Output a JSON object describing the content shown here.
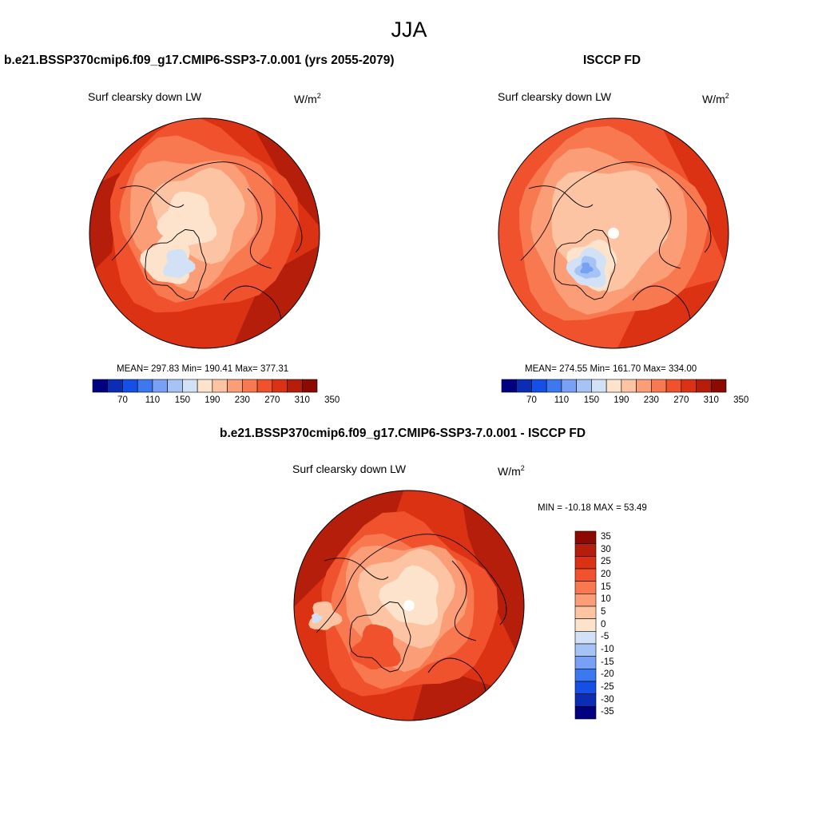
{
  "season": "JJA",
  "panels": [
    {
      "title": "b.e21.BSSP370cmip6.f09_g17.CMIP6-SSP3-7.0.001 (yrs 2055-2079)",
      "variable": "Surf clearsky down LW",
      "units_base": "W/m",
      "units_exp": "2",
      "stats": "MEAN= 297.83  Min= 190.41  Max= 377.31"
    },
    {
      "title": "ISCCP FD",
      "variable": "Surf clearsky down LW",
      "units_base": "W/m",
      "units_exp": "2",
      "stats": "MEAN= 274.55  Min= 161.70  Max= 334.00"
    },
    {
      "title": "b.e21.BSSP370cmip6.f09_g17.CMIP6-SSP3-7.0.001 - ISCCP FD",
      "variable": "Surf clearsky down LW",
      "units_base": "W/m",
      "units_exp": "2",
      "stats": "MIN = -10.18 MAX =  53.49"
    }
  ],
  "colorbar_abs": {
    "tick_labels": [
      "70",
      "110",
      "150",
      "190",
      "230",
      "270",
      "310",
      "350"
    ],
    "colors": [
      "#000080",
      "#0a2db4",
      "#1450e6",
      "#3c78f0",
      "#78a0f5",
      "#a5c3f5",
      "#d2e1f5",
      "#fde3cc",
      "#fcc4a2",
      "#fb9e78",
      "#f87850",
      "#f0522d",
      "#dc3214",
      "#b41e0a",
      "#8c0a00"
    ]
  },
  "colorbar_diff": {
    "tick_labels": [
      "35",
      "30",
      "25",
      "20",
      "15",
      "10",
      "5",
      "0",
      "-5",
      "-10",
      "-15",
      "-20",
      "-25",
      "-30",
      "-35"
    ],
    "colors": [
      "#8c0a00",
      "#b41e0a",
      "#dc3214",
      "#f0522d",
      "#f87850",
      "#fb9e78",
      "#fcc4a2",
      "#fde3cc",
      "#d2e1f5",
      "#a5c3f5",
      "#78a0f5",
      "#3c78f0",
      "#1450e6",
      "#0a2db4",
      "#000080"
    ]
  }
}
